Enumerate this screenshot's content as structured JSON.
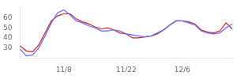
{
  "chart_data": {
    "type": "line",
    "categories": [
      null,
      null,
      null,
      null,
      null,
      null,
      null,
      "11/8",
      null,
      null,
      null,
      null,
      null,
      null,
      null,
      null,
      null,
      "11/22",
      null,
      null,
      null,
      null,
      null,
      null,
      null,
      null,
      "12/6",
      null,
      null,
      null,
      null,
      null,
      null,
      null,
      null
    ],
    "series": [
      {
        "color": "#6666ff",
        "values": [
          29,
          22,
          23,
          30,
          42,
          55,
          65,
          68,
          63,
          57,
          55,
          52,
          50,
          47,
          47,
          48,
          47,
          44,
          43,
          42,
          41,
          42,
          45,
          48,
          53,
          57,
          57,
          55,
          53,
          47,
          45,
          44,
          45,
          50,
          54
        ]
      },
      {
        "color": "#cc2222",
        "values": [
          32,
          27,
          26,
          33,
          45,
          57,
          62,
          64,
          64,
          59,
          56,
          54,
          51,
          49,
          50,
          48,
          45,
          44,
          40,
          40,
          41,
          42,
          44,
          48,
          53,
          57,
          57,
          56,
          54,
          48,
          46,
          45,
          47,
          55,
          49
        ]
      }
    ],
    "ylim": [
      20,
      72
    ],
    "yticks": [
      30,
      40,
      50,
      60
    ],
    "grid": false
  }
}
